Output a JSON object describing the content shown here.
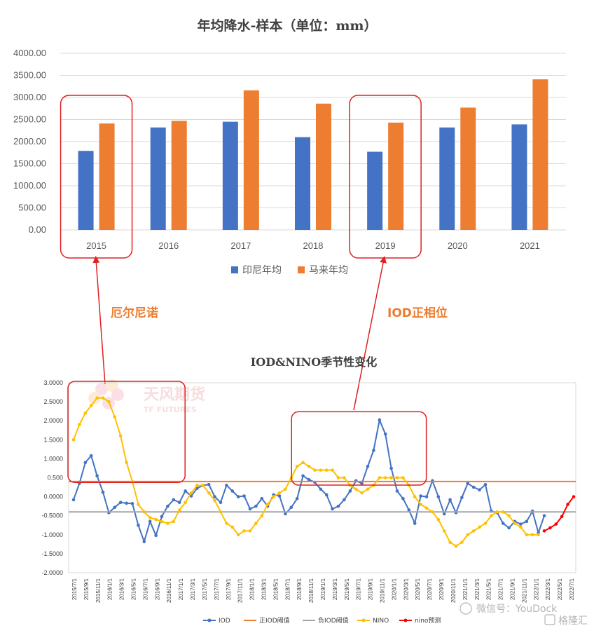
{
  "chart_data": [
    {
      "type": "bar",
      "title": "年均降水-样本（单位：mm）",
      "categories": [
        "2015",
        "2016",
        "2017",
        "2018",
        "2019",
        "2020",
        "2021"
      ],
      "series": [
        {
          "name": "印尼年均",
          "color": "#4472C4",
          "values": [
            1790,
            2320,
            2450,
            2100,
            1770,
            2320,
            2390
          ]
        },
        {
          "name": "马来年均",
          "color": "#ED7D31",
          "values": [
            2410,
            2470,
            3160,
            2860,
            2430,
            2770,
            3410
          ]
        }
      ],
      "ylim": [
        0,
        4000
      ],
      "yticks": [
        "0.00",
        "500.00",
        "1000.00",
        "1500.00",
        "2000.00",
        "2500.00",
        "3000.00",
        "3500.00",
        "4000.00"
      ],
      "highlight_categories": [
        "2015",
        "2019"
      ],
      "legend_position": "bottom",
      "grid": true
    },
    {
      "type": "line",
      "title": "IOD&NINO季节性变化",
      "x_labels": [
        "2015/7/1",
        "2015/9/1",
        "2015/11/1",
        "2016/1/1",
        "2016/3/1",
        "2016/5/1",
        "2016/7/1",
        "2016/9/1",
        "2016/11/1",
        "2017/1/1",
        "2017/3/1",
        "2017/5/1",
        "2017/7/1",
        "2017/9/1",
        "2017/11/1",
        "2018/1/1",
        "2018/3/1",
        "2018/5/1",
        "2018/7/1",
        "2018/9/1",
        "2018/11/1",
        "2019/1/1",
        "2019/3/1",
        "2019/5/1",
        "2019/7/1",
        "2019/9/1",
        "2019/11/1",
        "2020/1/1",
        "2020/3/1",
        "2020/5/1",
        "2020/7/1",
        "2020/9/1",
        "2020/11/1",
        "2021/1/1",
        "2021/3/1",
        "2021/5/1",
        "2021/7/1",
        "2021/9/1",
        "2021/11/1",
        "2022/1/1",
        "2022/3/1",
        "2022/5/1",
        "2022/7/1"
      ],
      "ylim": [
        -2,
        3
      ],
      "yticks": [
        "-2.0000",
        "-1.5000",
        "-1.0000",
        "-0.5000",
        "0.0000",
        "0.500",
        "1.0000",
        "1.5000",
        "2.0000",
        "2.5000",
        "3.0000"
      ],
      "legend_position": "bottom",
      "series": [
        {
          "name": "IOD",
          "color": "#4472C4",
          "marker": true,
          "start_index": 0,
          "values": [
            -0.08,
            0.35,
            0.9,
            1.08,
            0.55,
            0.12,
            -0.42,
            -0.28,
            -0.15,
            -0.17,
            -0.18,
            -0.75,
            -1.18,
            -0.65,
            -1.02,
            -0.52,
            -0.25,
            -0.08,
            -0.15,
            0.15,
            0.02,
            0.22,
            0.3,
            0.32,
            0.0,
            -0.15,
            0.3,
            0.15,
            0.0,
            0.02,
            -0.32,
            -0.25,
            -0.05,
            -0.25,
            0.05,
            0.02,
            -0.45,
            -0.28,
            -0.05,
            0.55,
            0.45,
            0.38,
            0.2,
            0.05,
            -0.32,
            -0.25,
            -0.08,
            0.15,
            0.42,
            0.35,
            0.8,
            1.22,
            2.02,
            1.65,
            0.75,
            0.15,
            -0.05,
            -0.35,
            -0.7,
            0.02,
            0.0,
            0.42,
            0.0,
            -0.45,
            -0.08,
            -0.42,
            -0.02,
            0.35,
            0.25,
            0.18,
            0.32,
            -0.38,
            -0.42,
            -0.7,
            -0.82,
            -0.65,
            -0.72,
            -0.65,
            -0.38,
            -0.95,
            -0.5
          ]
        },
        {
          "name": "正IOD阈值",
          "color": "#ED7D31",
          "constant": 0.4
        },
        {
          "name": "负IOD阈值",
          "color": "#A5A5A5",
          "constant": -0.4
        },
        {
          "name": "NINO",
          "color": "#FFC000",
          "marker": true,
          "start_index": 0,
          "values": [
            1.5,
            1.9,
            2.2,
            2.4,
            2.6,
            2.6,
            2.5,
            2.1,
            1.6,
            0.9,
            0.4,
            -0.2,
            -0.4,
            -0.55,
            -0.6,
            -0.65,
            -0.7,
            -0.65,
            -0.35,
            -0.15,
            0.1,
            0.3,
            0.3,
            0.1,
            -0.1,
            -0.4,
            -0.7,
            -0.8,
            -1.0,
            -0.9,
            -0.9,
            -0.7,
            -0.5,
            -0.2,
            0.0,
            0.1,
            0.2,
            0.5,
            0.8,
            0.9,
            0.8,
            0.7,
            0.7,
            0.7,
            0.7,
            0.5,
            0.5,
            0.3,
            0.2,
            0.1,
            0.2,
            0.3,
            0.5,
            0.5,
            0.5,
            0.5,
            0.5,
            0.3,
            0.0,
            -0.2,
            -0.3,
            -0.4,
            -0.6,
            -0.9,
            -1.2,
            -1.3,
            -1.2,
            -1.0,
            -0.9,
            -0.8,
            -0.7,
            -0.5,
            -0.4,
            -0.4,
            -0.5,
            -0.7,
            -0.8,
            -1.0,
            -1.0,
            -1.0
          ]
        },
        {
          "name": "nino预测",
          "color": "#FF0000",
          "marker": true,
          "start_index": 80,
          "values": [
            -0.9,
            -0.82,
            -0.72,
            -0.52,
            -0.2,
            0.0
          ]
        }
      ],
      "highlight_regions": [
        {
          "from_index": 0,
          "to_index": 18,
          "y_from": 0.45,
          "y_to": 3.0
        },
        {
          "from_index": 38,
          "to_index": 59,
          "y_from": 0.38,
          "y_to": 2.2
        }
      ]
    }
  ],
  "annotations": {
    "el_nino_label": "厄尔尼诺",
    "iod_label": "IOD正相位",
    "arrow_color": "#E02020",
    "label_color": "#ED7D31"
  },
  "watermark": {
    "logo_text_cn": "天风期货",
    "logo_text_en": "TF FUTURES",
    "wechat_text": "微信号：YouDock",
    "brand_text": "格隆汇"
  }
}
